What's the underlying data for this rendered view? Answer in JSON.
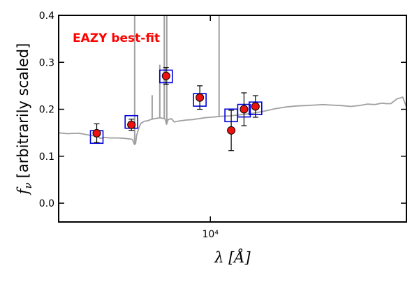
{
  "chart_data": {
    "type": "scatter",
    "xscale": "log",
    "xlim": [
      2500,
      60000
    ],
    "ylim": [
      -0.04,
      0.4
    ],
    "grid": false,
    "x_ticks": [
      {
        "value": 10000,
        "label": "10⁴"
      }
    ],
    "y_ticks": [
      {
        "value": 0.0,
        "label": "0.0"
      },
      {
        "value": 0.1,
        "label": "0.1"
      },
      {
        "value": 0.2,
        "label": "0.2"
      },
      {
        "value": 0.3,
        "label": "0.3"
      },
      {
        "value": 0.4,
        "label": "0.4"
      }
    ],
    "xlabel": "λ [Å]",
    "ylabel_symbol": "f",
    "ylabel_subscript": "ν",
    "ylabel_text": "[arbitrarily scaled]",
    "annotation": {
      "text": "EAZY best-fit",
      "color": "#ff0000"
    },
    "colors": {
      "template": "#a0a0a0",
      "model_box": "#0000dd",
      "observed_face": "#ee1111",
      "observed_edge": "#000000",
      "errorbar": "#000000"
    },
    "series": [
      {
        "role": "template",
        "x": [
          2500,
          2700,
          3000,
          3300,
          3600,
          3650,
          3800,
          4000,
          4300,
          4600,
          4900,
          5000,
          5050,
          5100,
          5150,
          5200,
          5300,
          5500,
          5600,
          5800,
          6000,
          6300,
          6600,
          6700,
          6800,
          7000,
          7200,
          7500,
          8000,
          8500,
          9000,
          9500,
          10000,
          10500,
          11000,
          12000,
          13000,
          14000,
          15000,
          16000,
          17000,
          18000,
          19000,
          20000,
          22000,
          24000,
          26000,
          28000,
          30000,
          33000,
          36000,
          39000,
          42000,
          45000,
          48000,
          50000,
          52000,
          55000,
          58000,
          60000
        ],
        "y": [
          0.15,
          0.148,
          0.149,
          0.145,
          0.142,
          0.138,
          0.14,
          0.139,
          0.139,
          0.138,
          0.136,
          0.125,
          0.127,
          0.145,
          0.152,
          0.16,
          0.17,
          0.175,
          0.175,
          0.178,
          0.18,
          0.182,
          0.18,
          0.168,
          0.178,
          0.18,
          0.173,
          0.175,
          0.177,
          0.178,
          0.18,
          0.182,
          0.183,
          0.184,
          0.185,
          0.186,
          0.188,
          0.19,
          0.192,
          0.195,
          0.198,
          0.201,
          0.203,
          0.205,
          0.207,
          0.208,
          0.209,
          0.21,
          0.209,
          0.208,
          0.206,
          0.208,
          0.211,
          0.21,
          0.213,
          0.212,
          0.212,
          0.222,
          0.226,
          0.205
        ]
      },
      {
        "role": "emission_lines",
        "x": [
          5007,
          5876,
          6300,
          6563,
          6717,
          10830
        ],
        "y": [
          0.4,
          0.23,
          0.295,
          0.4,
          0.4,
          0.4
        ]
      },
      {
        "role": "model_photometry",
        "x": [
          3540,
          4860,
          6670,
          9080,
          12100,
          13600,
          15100
        ],
        "y": [
          0.141,
          0.173,
          0.27,
          0.22,
          0.187,
          0.197,
          0.202
        ]
      },
      {
        "role": "observed_photometry",
        "x": [
          3540,
          4860,
          6670,
          9080,
          12100,
          13600,
          15100
        ],
        "y": [
          0.149,
          0.167,
          0.271,
          0.225,
          0.155,
          0.2,
          0.206
        ],
        "yerr": [
          0.02,
          0.012,
          0.018,
          0.025,
          0.043,
          0.035,
          0.023
        ]
      }
    ]
  }
}
